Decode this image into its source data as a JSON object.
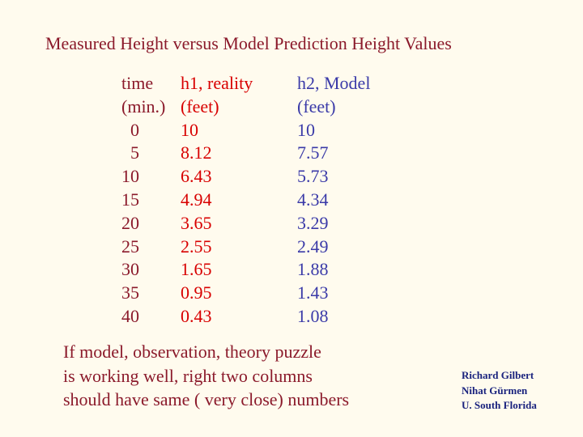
{
  "title": "Measured Height versus Model Prediction Height Values",
  "table": {
    "headers": {
      "time": [
        "time",
        "(min.)"
      ],
      "h1": [
        "h1, reality",
        "(feet)"
      ],
      "h2": [
        "h2, Model",
        "(feet)"
      ]
    },
    "rows": [
      {
        "time": "0",
        "h1": "10",
        "h2": "10"
      },
      {
        "time": "5",
        "h1": "8.12",
        "h2": "7.57"
      },
      {
        "time": "10",
        "h1": "6.43",
        "h2": "5.73"
      },
      {
        "time": "15",
        "h1": "4.94",
        "h2": "4.34"
      },
      {
        "time": "20",
        "h1": "3.65",
        "h2": "3.29"
      },
      {
        "time": "25",
        "h1": "2.55",
        "h2": "2.49"
      },
      {
        "time": "30",
        "h1": "1.65",
        "h2": "1.88"
      },
      {
        "time": "35",
        "h1": "0.95",
        "h2": "1.43"
      },
      {
        "time": "40",
        "h1": "0.43",
        "h2": "1.08"
      }
    ]
  },
  "note": [
    "If model, observation, theory puzzle",
    "is working well, right two columns",
    "should have same ( very close) numbers"
  ],
  "credits": [
    "Richard Gilbert",
    "Nihat Gürmen",
    "U. South Florida"
  ],
  "colors": {
    "background": "#fffbee",
    "title": "#8b1a2b",
    "reality": "#d80000",
    "model": "#3a3aa8",
    "credits": "#1a237e"
  }
}
